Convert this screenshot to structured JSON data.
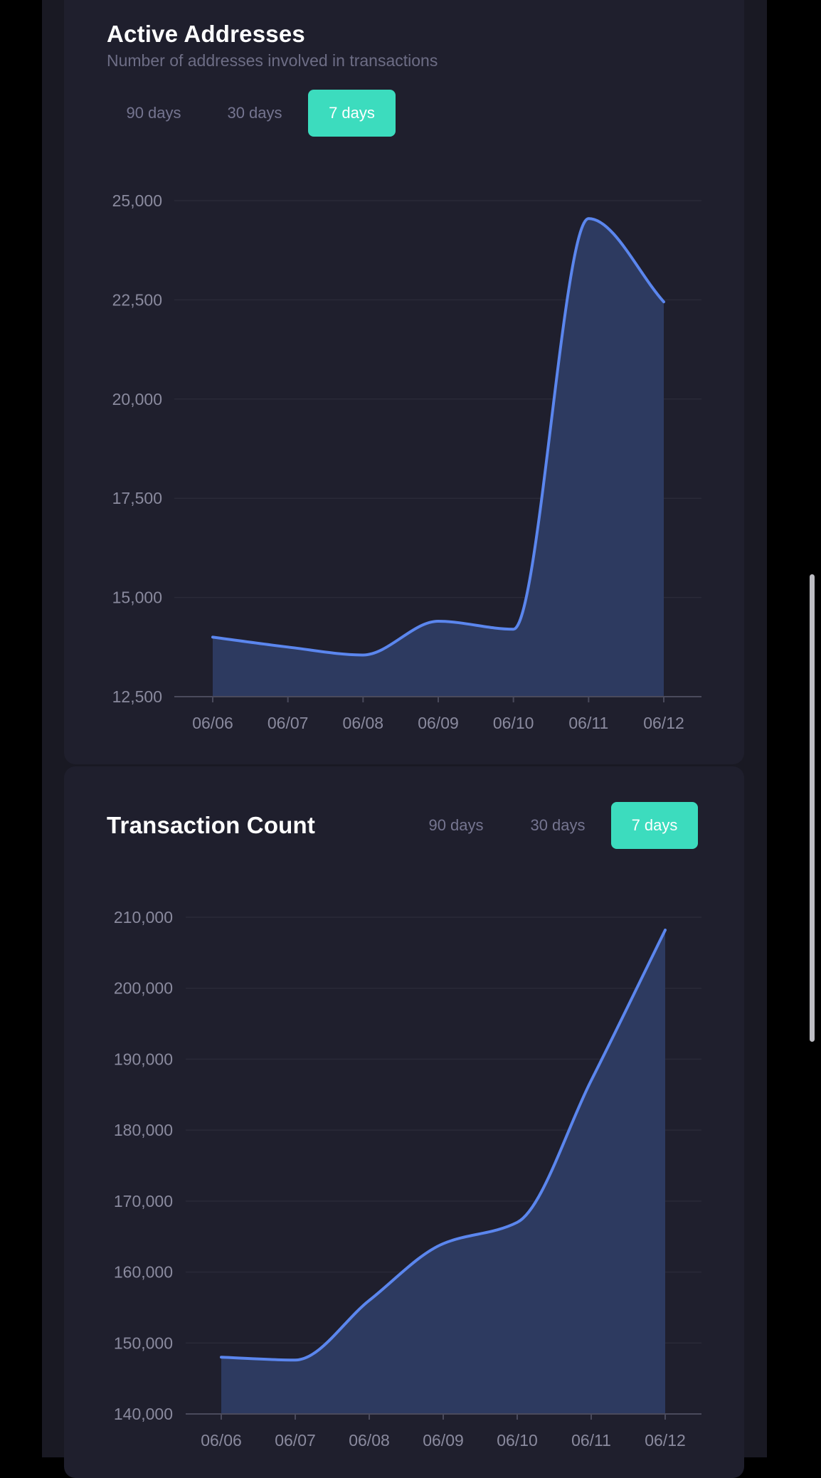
{
  "charts": {
    "active": {
      "title": "Active Addresses",
      "subtitle": "Number of addresses involved in transactions",
      "tabs": [
        "90 days",
        "30 days",
        "7 days"
      ],
      "active_tab": "7 days"
    },
    "tx": {
      "title": "Transaction Count",
      "tabs": [
        "90 days",
        "30 days",
        "7 days"
      ],
      "active_tab": "7 days"
    }
  },
  "colors": {
    "accent": "#3cdcbe",
    "line": "#5b86ee",
    "area": "#2d3a60",
    "grid": "#2a2a38",
    "axis": "#4a4a5c",
    "tick_text": "#8a8a9e"
  },
  "chart_data": [
    {
      "type": "area",
      "title": "Active Addresses",
      "subtitle": "Number of addresses involved in transactions",
      "x": [
        "06/06",
        "06/07",
        "06/08",
        "06/09",
        "06/10",
        "06/11",
        "06/12"
      ],
      "values": [
        14000,
        13750,
        13550,
        14400,
        14200,
        24550,
        22450
      ],
      "ylim": [
        12500,
        25000
      ],
      "yticks": [
        12500,
        15000,
        17500,
        20000,
        22500,
        25000
      ],
      "ytick_labels": [
        "12,500",
        "15,000",
        "17,500",
        "20,000",
        "22,500",
        "25,000"
      ],
      "grid": true
    },
    {
      "type": "area",
      "title": "Transaction Count",
      "x": [
        "06/06",
        "06/07",
        "06/08",
        "06/09",
        "06/10",
        "06/11",
        "06/12"
      ],
      "values": [
        148000,
        147600,
        156000,
        164000,
        167000,
        187000,
        208200
      ],
      "ylim": [
        140000,
        210000
      ],
      "yticks": [
        140000,
        150000,
        160000,
        170000,
        180000,
        190000,
        200000,
        210000
      ],
      "ytick_labels": [
        "140,000",
        "150,000",
        "160,000",
        "170,000",
        "180,000",
        "190,000",
        "200,000",
        "210,000"
      ],
      "grid": true
    }
  ]
}
